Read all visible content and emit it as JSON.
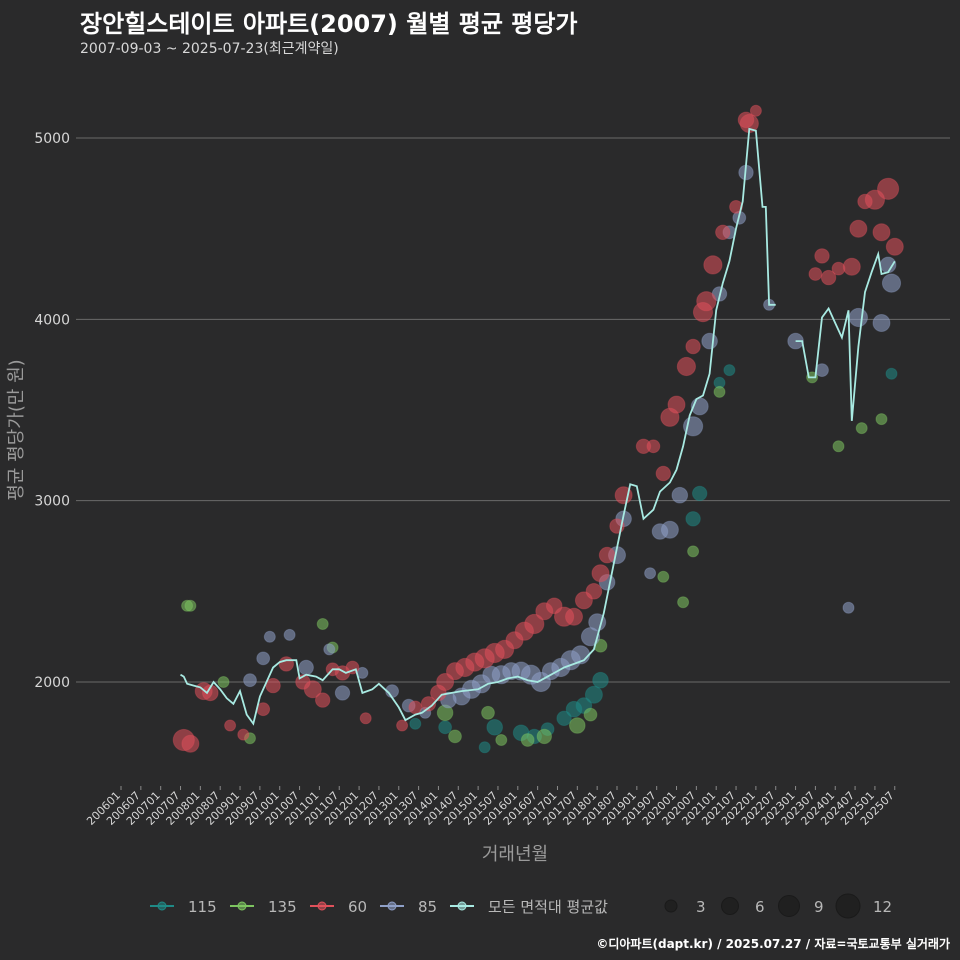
{
  "header": {
    "title": "장안힐스테이트 아파트(2007) 월별 평균 평당가",
    "subtitle": "2007-09-03 ~ 2025-07-23(최근계약일)"
  },
  "footer": {
    "credit": "©디아파트(dapt.kr) / 2025.07.27 / 자료=국토교통부 실거래가"
  },
  "chart_data": {
    "type": "scatter",
    "xlabel": "거래년월",
    "ylabel": "평균 평당가(만 원)",
    "ylim": [
      1430,
      5270
    ],
    "y_ticks": [
      2000,
      3000,
      4000,
      5000
    ],
    "grid": true,
    "legend_placement": "bottom",
    "x_tick_labels": [
      "200601",
      "200607",
      "200701",
      "200707",
      "200801",
      "200807",
      "200901",
      "200907",
      "201001",
      "201007",
      "201101",
      "201107",
      "201201",
      "201207",
      "201301",
      "201307",
      "201401",
      "201407",
      "201501",
      "201507",
      "201601",
      "201607",
      "201701",
      "201707",
      "201801",
      "201807",
      "201901",
      "201907",
      "202001",
      "202007",
      "202101",
      "202107",
      "202201",
      "202207",
      "202301",
      "202307",
      "202401",
      "202407",
      "202501",
      "202507"
    ],
    "colors": {
      "115": "#1f8a86",
      "135": "#7dc460",
      "60": "#e0515b",
      "85": "#8fa0c8",
      "avg": "#a8eae2"
    },
    "legend": {
      "series": [
        {
          "key": "115",
          "label": "115"
        },
        {
          "key": "135",
          "label": "135"
        },
        {
          "key": "60",
          "label": "60"
        },
        {
          "key": "85",
          "label": "85"
        },
        {
          "key": "avg",
          "label": "모든 면적대 평균값"
        }
      ],
      "sizes": [
        {
          "label": "3",
          "r": 6
        },
        {
          "label": "6",
          "r": 8.5
        },
        {
          "label": "9",
          "r": 10.5
        },
        {
          "label": "12",
          "r": 12
        }
      ]
    },
    "avg_line": [
      [
        "2007.7",
        2040
      ],
      [
        "2007.8",
        2030
      ],
      [
        "2007.9",
        1990
      ],
      [
        "2007.11",
        1980
      ],
      [
        "2008.1",
        1970
      ],
      [
        "2008.3",
        1940
      ],
      [
        "2008.5",
        2000
      ],
      [
        "2008.7",
        1960
      ],
      [
        "2008.9",
        1910
      ],
      [
        "2008.11",
        1880
      ],
      [
        "2009.1",
        1950
      ],
      [
        "2009.3",
        1820
      ],
      [
        "2009.5",
        1770
      ],
      [
        "2009.7",
        1920
      ],
      [
        "2009.9",
        2000
      ],
      [
        "2009.11",
        2080
      ],
      [
        "2010.1",
        2110
      ],
      [
        "2010.3",
        2120
      ],
      [
        "2010.6",
        2120
      ],
      [
        "2010.7",
        2020
      ],
      [
        "2010.9",
        2040
      ],
      [
        "2010.12",
        2030
      ],
      [
        "2011.2",
        2010
      ],
      [
        "2011.5",
        2070
      ],
      [
        "2011.7",
        2070
      ],
      [
        "2011.9",
        2050
      ],
      [
        "2011.12",
        2070
      ],
      [
        "2012.2",
        1940
      ],
      [
        "2012.5",
        1960
      ],
      [
        "2012.7",
        1990
      ],
      [
        "2012.10",
        1940
      ],
      [
        "2013.1",
        1860
      ],
      [
        "2013.3",
        1790
      ],
      [
        "2013.6",
        1820
      ],
      [
        "2013.8",
        1830
      ],
      [
        "2013.11",
        1870
      ],
      [
        "2014.2",
        1930
      ],
      [
        "2014.5",
        1940
      ],
      [
        "2014.8",
        1950
      ],
      [
        "2015.1",
        1960
      ],
      [
        "2015.4",
        1990
      ],
      [
        "2015.7",
        2000
      ],
      [
        "2015.10",
        2020
      ],
      [
        "2016.1",
        2030
      ],
      [
        "2016.4",
        2010
      ],
      [
        "2016.7",
        2000
      ],
      [
        "2016.10",
        2030
      ],
      [
        "2017.1",
        2060
      ],
      [
        "2017.3",
        2080
      ],
      [
        "2017.6",
        2100
      ],
      [
        "2017.9",
        2120
      ],
      [
        "2017.12",
        2180
      ],
      [
        "2018.3",
        2380
      ],
      [
        "2018.6",
        2650
      ],
      [
        "2018.9",
        2920
      ],
      [
        "2018.11",
        3090
      ],
      [
        "2019.1",
        3080
      ],
      [
        "2019.3",
        2900
      ],
      [
        "2019.6",
        2950
      ],
      [
        "2019.8",
        3050
      ],
      [
        "2019.11",
        3100
      ],
      [
        "2020.1",
        3170
      ],
      [
        "2020.3",
        3300
      ],
      [
        "2020.5",
        3470
      ],
      [
        "2020.7",
        3560
      ],
      [
        "2020.9",
        3580
      ],
      [
        "2020.11",
        3700
      ],
      [
        "2021.1",
        4050
      ],
      [
        "2021.3",
        4200
      ],
      [
        "2021.5",
        4320
      ],
      [
        "2021.7",
        4500
      ],
      [
        "2021.9",
        4650
      ],
      [
        "2021.11",
        5050
      ],
      [
        "2022.1",
        5040
      ],
      [
        "2022.3",
        4620
      ],
      [
        "2022.4",
        4620
      ],
      [
        "2022.5",
        4080
      ],
      [
        "2022.7",
        4080
      ],
      [
        "2023.1",
        3880
      ],
      [
        "2023.3",
        3880
      ],
      [
        "2023.5",
        3680
      ],
      [
        "2023.7",
        3680
      ],
      [
        "2023.9",
        4010
      ],
      [
        "2023.11",
        4060
      ],
      [
        "2024.1",
        3980
      ],
      [
        "2024.3",
        3900
      ],
      [
        "2024.5",
        4050
      ],
      [
        "2024.6",
        3440
      ],
      [
        "2024.8",
        3850
      ],
      [
        "2024.10",
        4150
      ],
      [
        "2024.12",
        4260
      ],
      [
        "2025.2",
        4360
      ],
      [
        "2025.3",
        4250
      ],
      [
        "2025.5",
        4260
      ],
      [
        "2025.7",
        4320
      ]
    ],
    "points": {
      "60": [
        [
          "2007.8",
          1680,
          11
        ],
        [
          "2007.10",
          1660,
          7
        ],
        [
          "2008.2",
          1950,
          7
        ],
        [
          "2008.4",
          1940,
          6
        ],
        [
          "2008.10",
          1760,
          3
        ],
        [
          "2009.2",
          1710,
          3
        ],
        [
          "2009.8",
          1850,
          4
        ],
        [
          "2009.11",
          1980,
          5
        ],
        [
          "2010.3",
          2100,
          5
        ],
        [
          "2010.8",
          2000,
          5
        ],
        [
          "2010.11",
          1960,
          7
        ],
        [
          "2011.2",
          1900,
          5
        ],
        [
          "2011.5",
          2070,
          4
        ],
        [
          "2011.8",
          2050,
          5
        ],
        [
          "2011.11",
          2080,
          4
        ],
        [
          "2012.3",
          1800,
          3
        ],
        [
          "2013.2",
          1760,
          3
        ],
        [
          "2013.6",
          1860,
          4
        ],
        [
          "2013.10",
          1880,
          5
        ],
        [
          "2014.1",
          1940,
          6
        ],
        [
          "2014.3",
          2000,
          7
        ],
        [
          "2014.6",
          2060,
          7
        ],
        [
          "2014.9",
          2080,
          8
        ],
        [
          "2014.12",
          2110,
          8
        ],
        [
          "2015.3",
          2130,
          9
        ],
        [
          "2015.6",
          2160,
          9
        ],
        [
          "2015.9",
          2180,
          8
        ],
        [
          "2015.12",
          2230,
          7
        ],
        [
          "2016.3",
          2280,
          8
        ],
        [
          "2016.6",
          2320,
          9
        ],
        [
          "2016.9",
          2390,
          7
        ],
        [
          "2016.12",
          2420,
          6
        ],
        [
          "2017.3",
          2360,
          9
        ],
        [
          "2017.6",
          2360,
          7
        ],
        [
          "2017.9",
          2450,
          7
        ],
        [
          "2017.12",
          2500,
          6
        ],
        [
          "2018.2",
          2600,
          7
        ],
        [
          "2018.4",
          2700,
          6
        ],
        [
          "2018.7",
          2860,
          5
        ],
        [
          "2018.9",
          3030,
          7
        ],
        [
          "2019.3",
          3300,
          5
        ],
        [
          "2019.6",
          3300,
          4
        ],
        [
          "2019.9",
          3150,
          5
        ],
        [
          "2019.11",
          3460,
          8
        ],
        [
          "2020.1",
          3530,
          7
        ],
        [
          "2020.4",
          3740,
          8
        ],
        [
          "2020.6",
          3850,
          5
        ],
        [
          "2020.9",
          4040,
          9
        ],
        [
          "2020.10",
          4100,
          9
        ],
        [
          "2020.12",
          4300,
          8
        ],
        [
          "2021.3",
          4480,
          5
        ],
        [
          "2021.7",
          4620,
          4
        ],
        [
          "2021.10",
          5100,
          6
        ],
        [
          "2021.11",
          5080,
          8
        ],
        [
          "2022.1",
          5150,
          3
        ],
        [
          "2023.7",
          4250,
          4
        ],
        [
          "2023.9",
          4350,
          5
        ],
        [
          "2023.11",
          4230,
          5
        ],
        [
          "2024.2",
          4280,
          4
        ],
        [
          "2024.6",
          4290,
          7
        ],
        [
          "2024.8",
          4500,
          7
        ],
        [
          "2024.10",
          4650,
          5
        ],
        [
          "2025.1",
          4660,
          9
        ],
        [
          "2025.3",
          4480,
          7
        ],
        [
          "2025.5",
          4720,
          11
        ],
        [
          "2025.7",
          4400,
          7
        ]
      ],
      "85": [
        [
          "2009.4",
          2010,
          4
        ],
        [
          "2009.8",
          2130,
          4
        ],
        [
          "2009.10",
          2250,
          3
        ],
        [
          "2010.4",
          2260,
          3
        ],
        [
          "2010.9",
          2080,
          5
        ],
        [
          "2011.4",
          2180,
          3
        ],
        [
          "2011.8",
          1940,
          5
        ],
        [
          "2012.2",
          2050,
          3
        ],
        [
          "2012.11",
          1950,
          4
        ],
        [
          "2013.4",
          1870,
          4
        ],
        [
          "2013.9",
          1830,
          3
        ],
        [
          "2014.4",
          1900,
          6
        ],
        [
          "2014.8",
          1920,
          7
        ],
        [
          "2014.11",
          1960,
          8
        ],
        [
          "2015.2",
          1990,
          8
        ],
        [
          "2015.5",
          2040,
          7
        ],
        [
          "2015.8",
          2040,
          8
        ],
        [
          "2015.11",
          2060,
          7
        ],
        [
          "2016.2",
          2060,
          8
        ],
        [
          "2016.5",
          2040,
          9
        ],
        [
          "2016.8",
          2000,
          9
        ],
        [
          "2016.11",
          2060,
          7
        ],
        [
          "2017.2",
          2080,
          8
        ],
        [
          "2017.5",
          2120,
          9
        ],
        [
          "2017.8",
          2150,
          8
        ],
        [
          "2017.11",
          2250,
          8
        ],
        [
          "2018.1",
          2330,
          7
        ],
        [
          "2018.4",
          2550,
          6
        ],
        [
          "2018.7",
          2700,
          7
        ],
        [
          "2018.9",
          2900,
          6
        ],
        [
          "2019.5",
          2600,
          3
        ],
        [
          "2019.8",
          2830,
          6
        ],
        [
          "2019.11",
          2840,
          7
        ],
        [
          "2020.2",
          3030,
          6
        ],
        [
          "2020.6",
          3410,
          9
        ],
        [
          "2020.8",
          3520,
          7
        ],
        [
          "2020.11",
          3880,
          6
        ],
        [
          "2021.2",
          4140,
          5
        ],
        [
          "2021.5",
          4480,
          4
        ],
        [
          "2021.8",
          4560,
          4
        ],
        [
          "2021.10",
          4810,
          5
        ],
        [
          "2022.5",
          4080,
          3
        ],
        [
          "2023.1",
          3880,
          6
        ],
        [
          "2023.9",
          3720,
          4
        ],
        [
          "2024.5",
          2410,
          3
        ],
        [
          "2024.8",
          4010,
          8
        ],
        [
          "2025.3",
          3980,
          7
        ],
        [
          "2025.6",
          4200,
          8
        ],
        [
          "2025.5",
          4300,
          6
        ]
      ],
      "115": [
        [
          "2013.6",
          1770,
          3
        ],
        [
          "2014.3",
          1750,
          4
        ],
        [
          "2015.3",
          1640,
          3
        ],
        [
          "2015.6",
          1750,
          6
        ],
        [
          "2016.2",
          1720,
          6
        ],
        [
          "2016.6",
          1700,
          5
        ],
        [
          "2016.10",
          1740,
          4
        ],
        [
          "2017.3",
          1800,
          5
        ],
        [
          "2017.6",
          1850,
          6
        ],
        [
          "2017.9",
          1870,
          6
        ],
        [
          "2017.12",
          1930,
          7
        ],
        [
          "2018.2",
          2010,
          6
        ],
        [
          "2020.6",
          2900,
          5
        ],
        [
          "2020.8",
          3040,
          5
        ],
        [
          "2021.2",
          3650,
          3
        ],
        [
          "2021.5",
          3720,
          3
        ],
        [
          "2025.6",
          3700,
          3
        ]
      ],
      "135": [
        [
          "2007.9",
          2420,
          3
        ],
        [
          "2007.10",
          2420,
          3
        ],
        [
          "2008.8",
          2000,
          3
        ],
        [
          "2009.4",
          1690,
          3
        ],
        [
          "2011.2",
          2320,
          3
        ],
        [
          "2011.5",
          2190,
          3
        ],
        [
          "2014.3",
          1830,
          6
        ],
        [
          "2014.6",
          1700,
          4
        ],
        [
          "2015.4",
          1830,
          4
        ],
        [
          "2015.8",
          1680,
          3
        ],
        [
          "2016.4",
          1680,
          4
        ],
        [
          "2016.9",
          1700,
          5
        ],
        [
          "2017.7",
          1760,
          6
        ],
        [
          "2017.11",
          1820,
          4
        ],
        [
          "2018.2",
          2200,
          4
        ],
        [
          "2019.9",
          2580,
          3
        ],
        [
          "2020.3",
          2440,
          3
        ],
        [
          "2020.6",
          2720,
          3
        ],
        [
          "2021.2",
          3600,
          3
        ],
        [
          "2023.6",
          3680,
          3
        ],
        [
          "2024.2",
          3300,
          3
        ],
        [
          "2024.9",
          3400,
          3
        ],
        [
          "2025.3",
          3450,
          3
        ]
      ]
    }
  }
}
